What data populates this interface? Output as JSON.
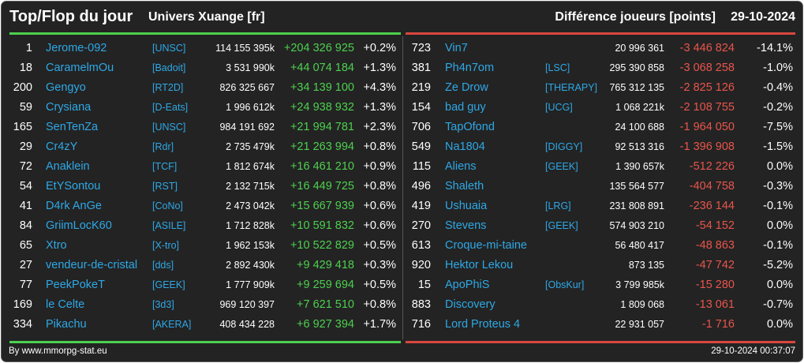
{
  "header": {
    "title": "Top/Flop du jour",
    "server": "Univers Xuange [fr]",
    "metric": "Différence joueurs [points]",
    "date": "29-10-2024"
  },
  "colors": {
    "background": "#232323",
    "top_accent": "#4dd04f",
    "flop_accent": "#d9473f",
    "name_link": "#2ea8e6",
    "negative_delta": "#e8554c"
  },
  "top": [
    {
      "rank": "1",
      "name": "Jerome-092",
      "guild": "[UNSC]",
      "points": "114 155 395k",
      "delta": "+204 326 925",
      "pct": "+0.2%"
    },
    {
      "rank": "18",
      "name": "CaramelmOu",
      "guild": "[Badoit]",
      "points": "3 531 990k",
      "delta": "+44 074 184",
      "pct": "+1.3%"
    },
    {
      "rank": "200",
      "name": "Gengyo",
      "guild": "[RT2D]",
      "points": "826 325 667",
      "delta": "+34 139 100",
      "pct": "+4.3%"
    },
    {
      "rank": "59",
      "name": "Crysiana",
      "guild": "[D-Eats]",
      "points": "1 996 612k",
      "delta": "+24 938 932",
      "pct": "+1.3%"
    },
    {
      "rank": "165",
      "name": "SenTenZa",
      "guild": "[UNSC]",
      "points": "984 191 692",
      "delta": "+21 994 781",
      "pct": "+2.3%"
    },
    {
      "rank": "29",
      "name": "Cr4zY",
      "guild": "[Rdr]",
      "points": "2 735 479k",
      "delta": "+21 263 994",
      "pct": "+0.8%"
    },
    {
      "rank": "72",
      "name": "Anaklein",
      "guild": "[TCF]",
      "points": "1 812 674k",
      "delta": "+16 461 210",
      "pct": "+0.9%"
    },
    {
      "rank": "54",
      "name": "EtYSontou",
      "guild": "[RST]",
      "points": "2 132 715k",
      "delta": "+16 449 725",
      "pct": "+0.8%"
    },
    {
      "rank": "41",
      "name": "D4rk AnGe",
      "guild": "[CoNo]",
      "points": "2 473 042k",
      "delta": "+15 667 939",
      "pct": "+0.6%"
    },
    {
      "rank": "84",
      "name": "GriimLocK60",
      "guild": "[ASILE]",
      "points": "1 712 828k",
      "delta": "+10 591 832",
      "pct": "+0.6%"
    },
    {
      "rank": "65",
      "name": "Xtro",
      "guild": "[X-tro]",
      "points": "1 962 153k",
      "delta": "+10 522 829",
      "pct": "+0.5%"
    },
    {
      "rank": "27",
      "name": "vendeur-de-cristal",
      "guild": "[dds]",
      "points": "2 892 430k",
      "delta": "+9 429 418",
      "pct": "+0.3%"
    },
    {
      "rank": "77",
      "name": "PeekPokeT",
      "guild": "[GEEK]",
      "points": "1 777 909k",
      "delta": "+9 259 694",
      "pct": "+0.5%"
    },
    {
      "rank": "169",
      "name": "le Celte",
      "guild": "[3d3]",
      "points": "969 120 397",
      "delta": "+7 621 510",
      "pct": "+0.8%"
    },
    {
      "rank": "334",
      "name": "Pikachu",
      "guild": "[AKERA]",
      "points": "408 434 228",
      "delta": "+6 927 394",
      "pct": "+1.7%"
    }
  ],
  "flop": [
    {
      "rank": "723",
      "name": "Vin7",
      "guild": "",
      "points": "20 996 361",
      "delta": "-3 446 824",
      "pct": "-14.1%"
    },
    {
      "rank": "381",
      "name": "Ph4n7om",
      "guild": "[LSC]",
      "points": "295 390 858",
      "delta": "-3 068 258",
      "pct": "-1.0%"
    },
    {
      "rank": "219",
      "name": "Ze Drow",
      "guild": "[THERAPY]",
      "points": "765 312 135",
      "delta": "-2 825 126",
      "pct": "-0.4%"
    },
    {
      "rank": "154",
      "name": "bad guy",
      "guild": "[UCG]",
      "points": "1 068 221k",
      "delta": "-2 108 755",
      "pct": "-0.2%"
    },
    {
      "rank": "706",
      "name": "TapOfond",
      "guild": "",
      "points": "24 100 688",
      "delta": "-1 964 050",
      "pct": "-7.5%"
    },
    {
      "rank": "549",
      "name": "Na1804",
      "guild": "[DIGGY]",
      "points": "92 513 316",
      "delta": "-1 396 908",
      "pct": "-1.5%"
    },
    {
      "rank": "115",
      "name": "Aliens",
      "guild": "[GEEK]",
      "points": "1 390 657k",
      "delta": "-512 226",
      "pct": "0.0%"
    },
    {
      "rank": "496",
      "name": "Shaleth",
      "guild": "",
      "points": "135 564 577",
      "delta": "-404 758",
      "pct": "-0.3%"
    },
    {
      "rank": "419",
      "name": "Ushuaia",
      "guild": "[LRG]",
      "points": "231 808 891",
      "delta": "-236 144",
      "pct": "-0.1%"
    },
    {
      "rank": "270",
      "name": "Stevens",
      "guild": "[GEEK]",
      "points": "574 903 210",
      "delta": "-54 152",
      "pct": "0.0%"
    },
    {
      "rank": "613",
      "name": "Croque-mi-taine",
      "guild": "",
      "points": "56 480 417",
      "delta": "-48 863",
      "pct": "-0.1%"
    },
    {
      "rank": "920",
      "name": "Hektor Lekou",
      "guild": "",
      "points": "873 135",
      "delta": "-47 742",
      "pct": "-5.2%"
    },
    {
      "rank": "15",
      "name": "ApoPhiS",
      "guild": "[ObsKur]",
      "points": "3 799 985k",
      "delta": "-15 280",
      "pct": "0.0%"
    },
    {
      "rank": "883",
      "name": "Discovery",
      "guild": "",
      "points": "1 809 068",
      "delta": "-13 061",
      "pct": "-0.7%"
    },
    {
      "rank": "716",
      "name": "Lord Proteus 4",
      "guild": "",
      "points": "22 931 057",
      "delta": "-1 716",
      "pct": "0.0%"
    }
  ],
  "footer": {
    "credit": "By www.mmorpg-stat.eu",
    "timestamp": "29-10-2024 00:37:07"
  }
}
